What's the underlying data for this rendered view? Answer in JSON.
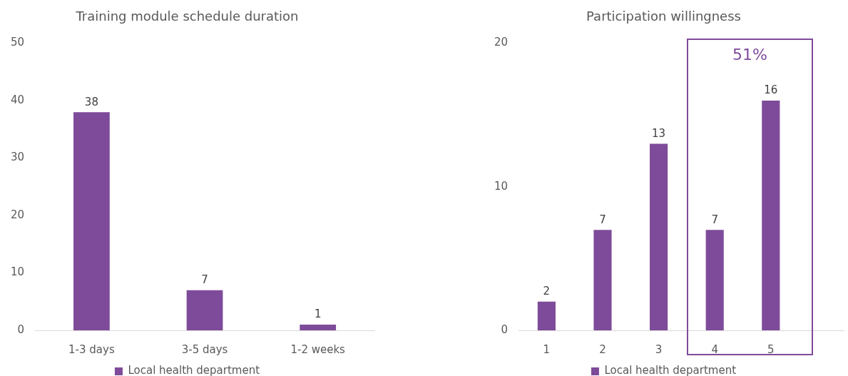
{
  "chart_data": [
    {
      "type": "bar",
      "title": "Training module schedule duration",
      "categories": [
        "1-3 days",
        "3-5 days",
        "1-2 weeks"
      ],
      "series": [
        {
          "name": "Local health department",
          "color": "#7e4b9a",
          "values": [
            38,
            7,
            1
          ]
        }
      ],
      "ylim": [
        0,
        50
      ],
      "yticks": [
        0,
        10,
        20,
        30,
        40,
        50
      ],
      "legend": "bottom",
      "data_labels": true
    },
    {
      "type": "bar",
      "title": "Participation willingness",
      "x": [
        1,
        2,
        3,
        4,
        5
      ],
      "series": [
        {
          "name": "Local health department",
          "color": "#7e4b9a",
          "values": [
            2,
            7,
            13,
            7,
            16
          ]
        }
      ],
      "xlim": [
        0.5,
        6.3
      ],
      "xticks": [
        1,
        2,
        3,
        4,
        5
      ],
      "ylim": [
        0,
        20
      ],
      "yticks": [
        0,
        10,
        20
      ],
      "annotations": [
        "51%"
      ],
      "legend": "bottom",
      "data_labels": true
    }
  ]
}
